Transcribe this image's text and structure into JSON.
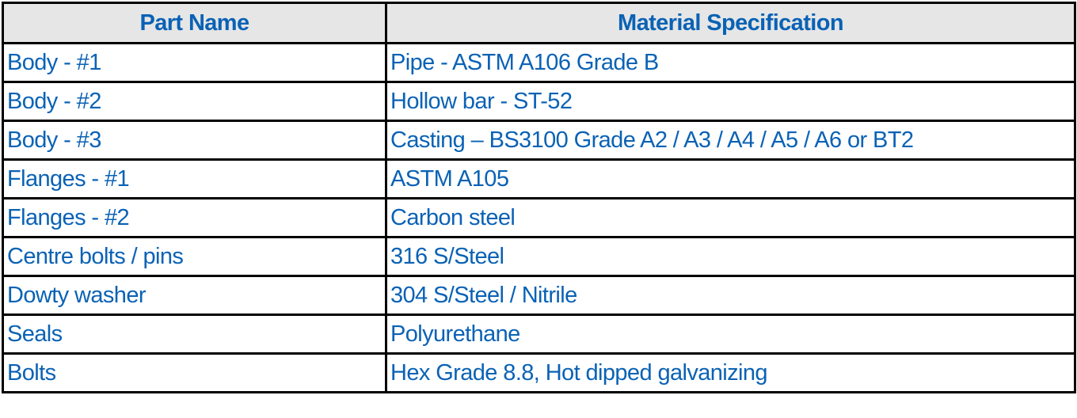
{
  "table": {
    "header": [
      "Part Name",
      "Material Specification"
    ],
    "rows": [
      [
        "Body - #1",
        "Pipe - ASTM A106 Grade B"
      ],
      [
        "Body - #2",
        "Hollow bar - ST-52"
      ],
      [
        "Body - #3",
        "Casting – BS3100 Grade A2 / A3 / A4 / A5 / A6 or BT2"
      ],
      [
        "Flanges - #1",
        "ASTM A105"
      ],
      [
        "Flanges - #2",
        "Carbon steel"
      ],
      [
        "Centre bolts / pins",
        "316 S/Steel"
      ],
      [
        "Dowty washer",
        "304 S/Steel / Nitrile"
      ],
      [
        "Seals",
        "Polyurethane"
      ],
      [
        "Bolts",
        "Hex Grade 8.8, Hot dipped galvanizing"
      ]
    ]
  }
}
